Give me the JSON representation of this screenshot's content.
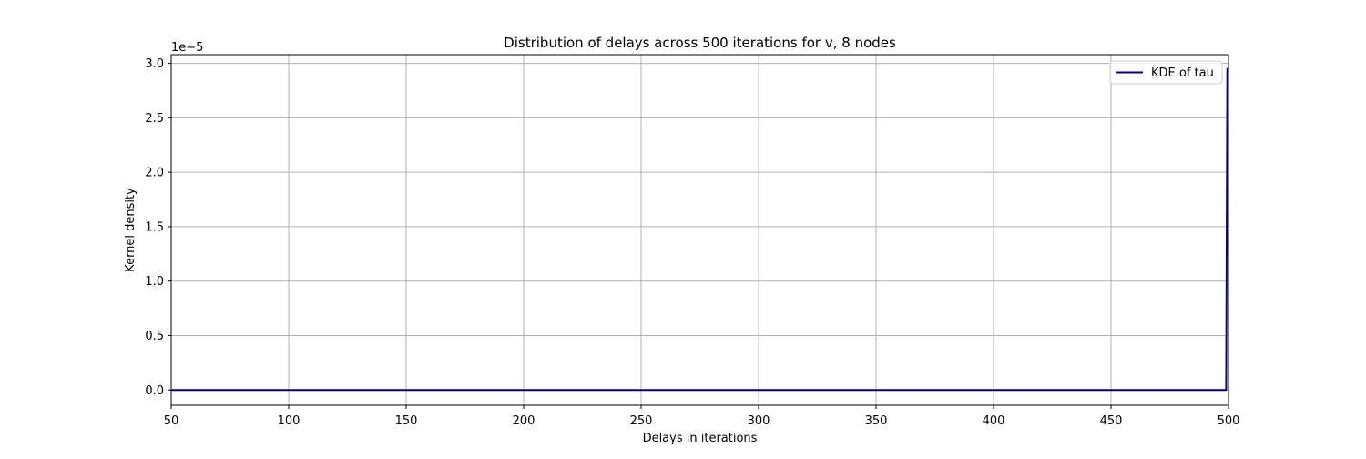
{
  "chart_data": {
    "type": "line",
    "title": "Distribution of delays across 500 iterations for v, 8 nodes",
    "xlabel": "Delays in iterations",
    "ylabel": "Kernel density",
    "y_offset_label": "1e−5",
    "xlim": [
      50,
      500
    ],
    "ylim": [
      -1.4e-06,
      3.08e-05
    ],
    "x_ticks": [
      50,
      100,
      150,
      200,
      250,
      300,
      350,
      400,
      450,
      500
    ],
    "x_tick_labels": [
      "50",
      "100",
      "150",
      "200",
      "250",
      "300",
      "350",
      "400",
      "450",
      "500"
    ],
    "y_ticks": [
      0,
      5e-06,
      1e-05,
      1.5e-05,
      2e-05,
      2.5e-05,
      3e-05
    ],
    "y_tick_labels": [
      "0.0",
      "0.5",
      "1.0",
      "1.5",
      "2.0",
      "2.5",
      "3.0"
    ],
    "grid": true,
    "legend_position": "top-right",
    "series": [
      {
        "name": "KDE of tau",
        "color": "#000080",
        "x": [
          50,
          100,
          150,
          200,
          250,
          300,
          350,
          400,
          450,
          499,
          499.5,
          500
        ],
        "y": [
          0,
          0,
          0,
          0,
          0,
          0,
          0,
          0,
          0,
          0,
          2.95e-05,
          2.95e-05
        ]
      }
    ]
  }
}
